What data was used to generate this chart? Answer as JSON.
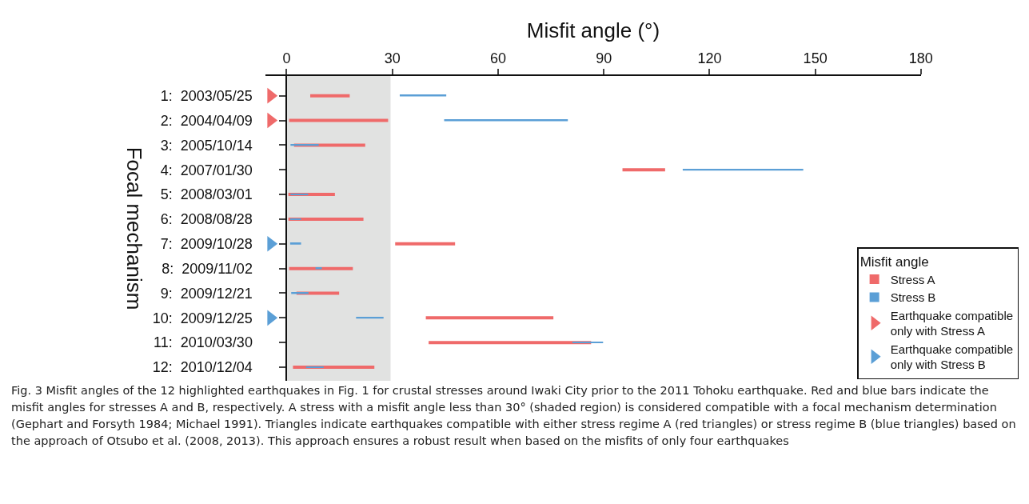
{
  "chart_data": {
    "type": "bar",
    "orientation": "horizontal",
    "xlabel": "Misfit angle (°)",
    "ylabel": "Focal mechanism",
    "legend_title": "Misfit angle",
    "legend": "bottom right",
    "grid": false,
    "categories": [
      "1:  2003/05/25",
      "2:  2004/04/09",
      "3:  2005/10/14",
      "4:  2007/01/30",
      "5:  2008/03/01",
      "6:  2008/08/28",
      "7:  2009/10/28",
      "8:  2009/11/02",
      "9:  2009/12/21",
      "10:  2009/12/25",
      "11:  2010/03/30",
      "12:  2010/12/04"
    ],
    "xlim": [
      -6,
      180
    ],
    "xticks": [
      0,
      30,
      60,
      90,
      120,
      150,
      180
    ],
    "bands": [
      {
        "axis": "x",
        "from": 0,
        "to": 29.5,
        "color": "#e1e2e1"
      }
    ],
    "series": [
      {
        "name": "Stress A",
        "color": "#ef6a6a",
        "base": [
          6.7,
          0.7,
          2.1,
          95.3,
          0.5,
          0.5,
          30.8,
          0.7,
          2.8,
          39.5,
          40.3,
          1.8
        ],
        "values": [
          11.2,
          28.1,
          20.2,
          12.1,
          13.2,
          21.3,
          17.0,
          18.1,
          12.1,
          36.2,
          46.1,
          23.1
        ]
      },
      {
        "name": "Stress B",
        "color": "#5b9fd6",
        "base": [
          32.1,
          44.7,
          1.1,
          112.4,
          1.1,
          1.0,
          1.0,
          8.2,
          1.3,
          19.7,
          81.1,
          5.5
        ],
        "values": [
          13.2,
          35.1,
          8.0,
          34.2,
          5.0,
          3.1,
          3.1,
          1.8,
          4.9,
          7.8,
          8.7,
          5.0
        ]
      },
      {
        "name": "Earthquake compatible only with Stress A",
        "type": "scatter",
        "marker": "triangle",
        "color": "#ef6a6a",
        "values": [
          -4.5,
          -4.5,
          null,
          null,
          null,
          null,
          null,
          null,
          null,
          null,
          null,
          null
        ]
      },
      {
        "name": "Earthquake compatible only with Stress B",
        "type": "scatter",
        "marker": "triangle",
        "color": "#5b9fd6",
        "values": [
          null,
          null,
          null,
          null,
          null,
          null,
          -4.5,
          null,
          null,
          -4.5,
          null,
          null
        ]
      }
    ],
    "annotations": [
      "Fig. 3  Misfit angles of the 12 highlighted earthquakes in Fig. 1 for crustal stresses around Iwaki City prior to the 2011 Tohoku earthquake. Red and blue bars indicate the misfit angles for stresses A and B, respectively. A stress with a misfit angle less than 30° (shaded region) is considered compatible with a focal mechanism determination (Gephart and Forsyth 1984; Michael 1991). Triangles indicate earthquakes compatible with either stress regime A (red triangles) or stress regime B (blue triangles) based on the approach of Otsubo et al. (2008, 2013). This approach ensures a robust result when based on the misfits of only four earthquakes"
    ]
  }
}
